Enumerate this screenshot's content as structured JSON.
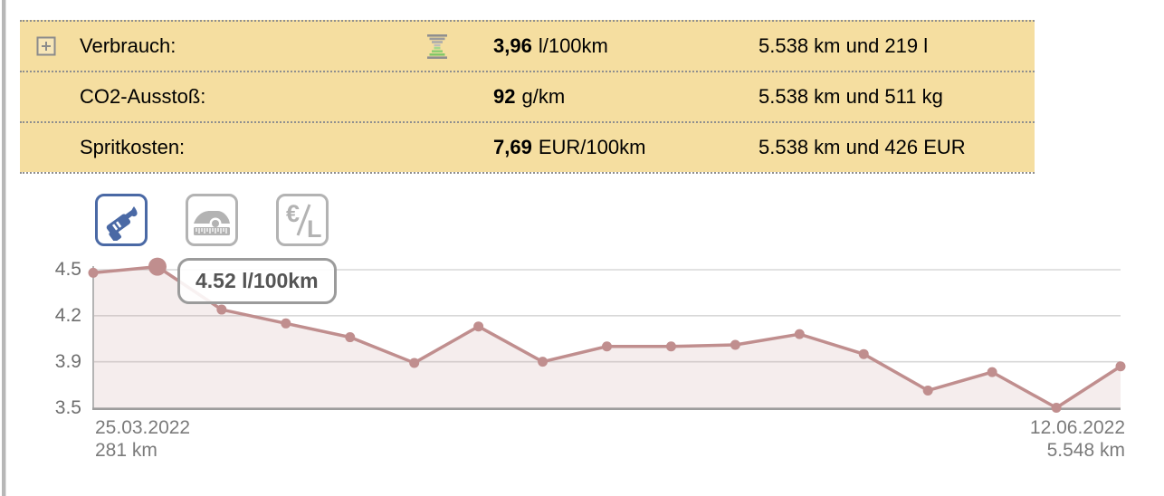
{
  "summary_table": {
    "background": "#f5dea0",
    "border_color": "#8f8f8f",
    "rows": [
      {
        "label": "Verbrauch:",
        "value": "3,96",
        "unit": "l/100km",
        "total": "5.538 km und 219 l",
        "expand_icon": "plus-box-icon",
        "indicator_icon": "quantity-hourglass-icon"
      },
      {
        "label": "CO2-Ausstoß:",
        "value": "92",
        "unit": "g/km",
        "total": "5.538 km und 511 kg"
      },
      {
        "label": "Spritkosten:",
        "value": "7,69",
        "unit": "EUR/100km",
        "total": "5.538 km und 426 EUR"
      }
    ]
  },
  "toolbar": {
    "selected_color": "#4a69a5",
    "unselected_color": "#b3b3b3",
    "buttons": [
      {
        "name": "consumption",
        "icon": "fuel-nozzle-icon",
        "selected": true
      },
      {
        "name": "distance",
        "icon": "car-odometer-icon",
        "selected": false
      },
      {
        "name": "fuel-price",
        "icon": "euro-per-liter-icon",
        "selected": false,
        "icon_text": {
          "numerator": "€",
          "denominator": "L"
        }
      }
    ]
  },
  "chart_data": {
    "type": "area",
    "values": [
      4.48,
      4.52,
      4.24,
      4.15,
      4.06,
      3.89,
      4.13,
      3.9,
      4.0,
      4.0,
      4.01,
      4.08,
      3.95,
      3.65,
      3.81,
      3.5,
      3.86
    ],
    "yticks": [
      4.5,
      4.2,
      3.9,
      3.5
    ],
    "ylim": [
      3.5,
      4.55
    ],
    "grid": true,
    "legend_position": "none",
    "hover_index": 1,
    "tooltip": "4.52 l/100km",
    "x_axis": {
      "start": {
        "date": "25.03.2022",
        "odometer": "281 km"
      },
      "end": {
        "date": "12.06.2022",
        "odometer": "5.548 km"
      }
    },
    "line_color": "#c08e8e",
    "fill_color": "rgba(192,142,142,0.16)",
    "axis_color": "#9d9d9d",
    "grid_color": "#d8d8d8"
  }
}
